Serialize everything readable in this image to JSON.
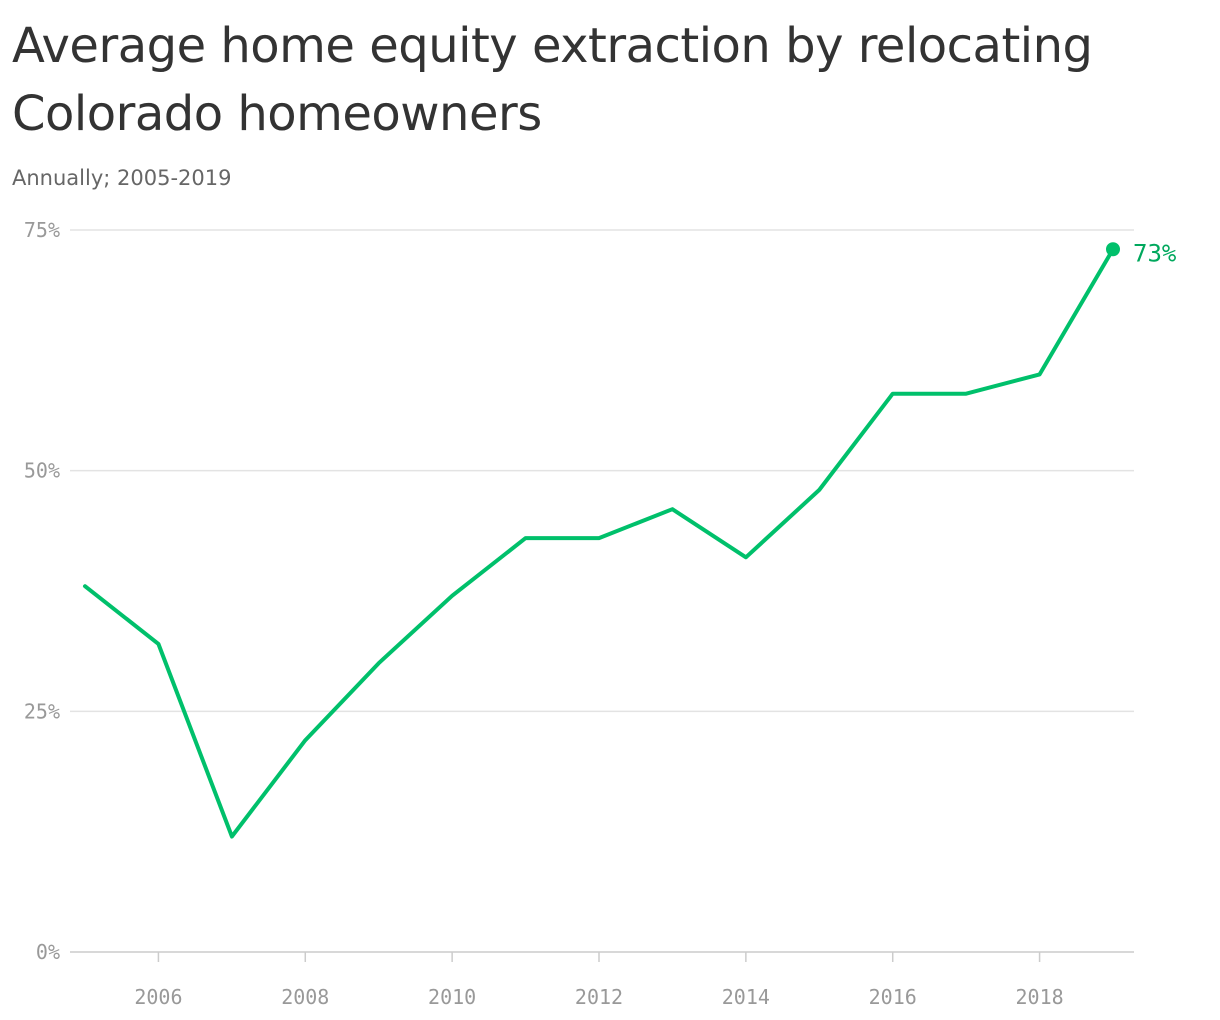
{
  "colors": {
    "line": "#00c06b",
    "label": "#00a85d",
    "grid": "#e3e3e3",
    "axis": "#cccccc"
  },
  "chart_data": {
    "type": "line",
    "title": "Average home equity extraction by relocating Colorado homeowners",
    "subtitle": "Annually; 2005-2019",
    "xlabel": "",
    "ylabel": "",
    "x": [
      2005,
      2006,
      2007,
      2008,
      2009,
      2010,
      2011,
      2012,
      2013,
      2014,
      2015,
      2016,
      2017,
      2018,
      2019
    ],
    "series": [
      {
        "values": [
          38,
          32,
          12,
          22,
          30,
          37,
          43,
          43,
          46,
          41,
          48,
          58,
          58,
          60,
          73
        ]
      }
    ],
    "ylim": [
      0,
      75
    ],
    "xlim": [
      2005,
      2019
    ],
    "y_ticks": [
      0,
      25,
      50,
      75
    ],
    "y_tick_labels": [
      "0%",
      "25%",
      "50%",
      "75%"
    ],
    "x_ticks": [
      2006,
      2008,
      2010,
      2012,
      2014,
      2016,
      2018
    ],
    "x_tick_labels": [
      "2006",
      "2008",
      "2010",
      "2012",
      "2014",
      "2016",
      "2018"
    ],
    "end_label": "73%",
    "grid": true
  }
}
